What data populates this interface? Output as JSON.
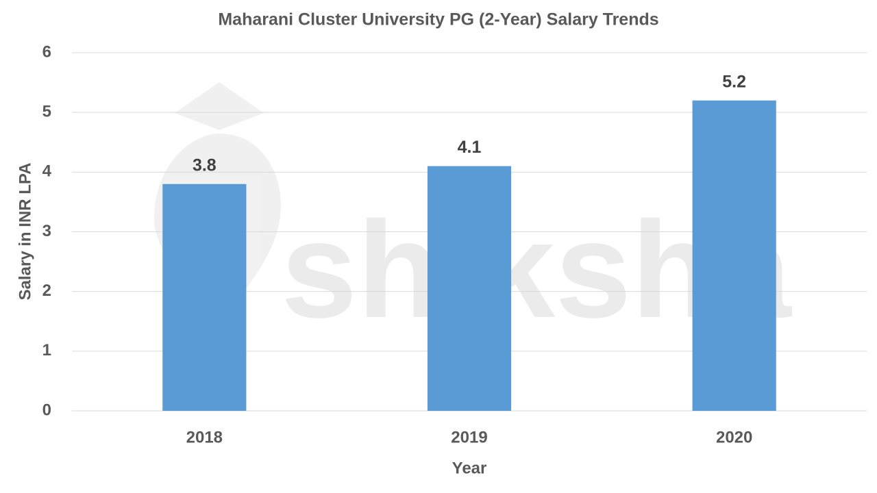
{
  "chart_data": {
    "type": "bar",
    "title": "Maharani Cluster University PG (2-Year) Salary Trends",
    "categories": [
      "2018",
      "2019",
      "2020"
    ],
    "values": [
      3.8,
      4.1,
      5.2
    ],
    "color": "#5b9bd5",
    "ylim": [
      0,
      6
    ],
    "yticks": [
      0,
      1,
      2,
      3,
      4,
      5,
      6
    ],
    "grid": true,
    "x_label": "Year",
    "y_label": "Salary in INR LPA",
    "watermark": "shiksha"
  }
}
